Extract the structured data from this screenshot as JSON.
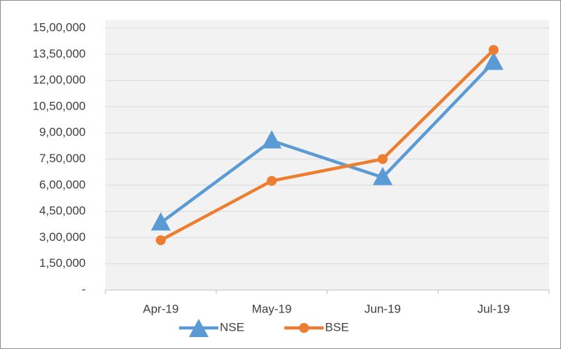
{
  "chart_data": {
    "type": "line",
    "categories": [
      "Apr-19",
      "May-19",
      "Jun-19",
      "Jul-19"
    ],
    "series": [
      {
        "name": "NSE",
        "color": "#5b9bd5",
        "marker": "triangle",
        "values": [
          385000,
          855000,
          645000,
          1305000
        ]
      },
      {
        "name": "BSE",
        "color": "#ed7d31",
        "marker": "circle",
        "values": [
          285000,
          625000,
          750000,
          1375000
        ]
      }
    ],
    "ylim": [
      0,
      1500000
    ],
    "yticks": [
      {
        "value": 0,
        "label": "-"
      },
      {
        "value": 150000,
        "label": "1,50,000"
      },
      {
        "value": 300000,
        "label": "3,00,000"
      },
      {
        "value": 450000,
        "label": "4,50,000"
      },
      {
        "value": 600000,
        "label": "6,00,000"
      },
      {
        "value": 750000,
        "label": "7,50,000"
      },
      {
        "value": 900000,
        "label": "9,00,000"
      },
      {
        "value": 1050000,
        "label": "10,50,000"
      },
      {
        "value": 1200000,
        "label": "12,00,000"
      },
      {
        "value": 1350000,
        "label": "13,50,000"
      },
      {
        "value": 1500000,
        "label": "15,00,000"
      }
    ],
    "grid": true,
    "legend": "bottom"
  }
}
